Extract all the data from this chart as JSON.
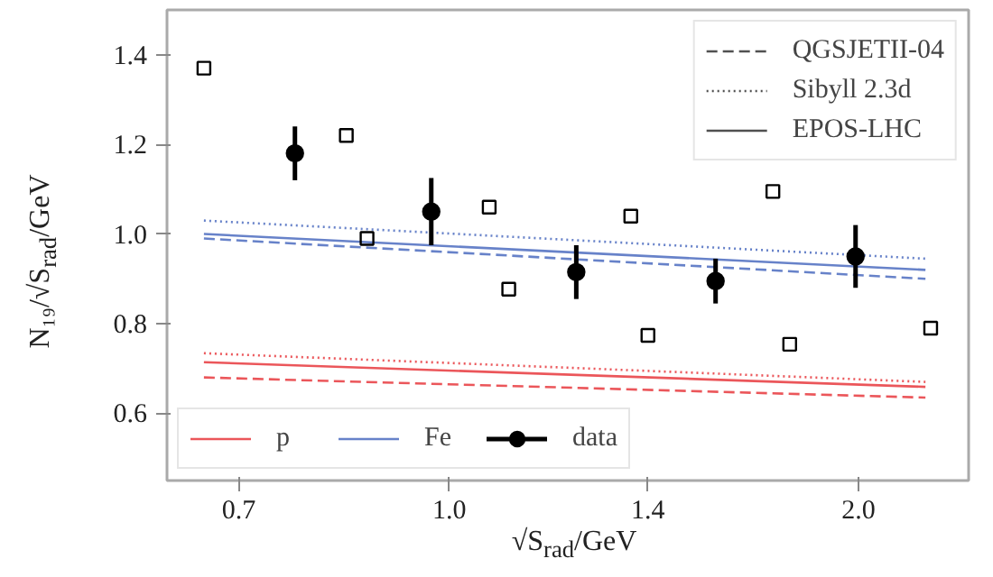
{
  "chart_data": {
    "type": "line",
    "xlabel": "√S$_{rad}$/GeV",
    "ylabel": "N₁₉/√S$_{rad}$/GeV",
    "log": "x",
    "xlim": [
      0.62,
      2.41
    ],
    "ylim": [
      0.45,
      1.5
    ],
    "xticks": [
      0.7,
      {
        "value": 1,
        "label": "1.0"
      },
      1.4,
      {
        "value": 2,
        "label": "2.0"
      }
    ],
    "yticks": [
      0.6,
      0.8,
      {
        "value": 1,
        "label": "1.0"
      },
      1.2,
      1.4
    ],
    "grid": false,
    "legend": "bottom left",
    "series": [
      {
        "x": [
          0.66,
          2.24
        ],
        "values": [
          0.68,
          0.635
        ],
        "color": "#e8383d",
        "line_style": "dashed"
      },
      {
        "x": [
          0.66,
          2.24
        ],
        "values": [
          0.734,
          0.67
        ],
        "color": "#e8383d",
        "line_style": "dotted"
      },
      {
        "name": "p",
        "x": [
          0.66,
          2.24
        ],
        "values": [
          0.714,
          0.659
        ],
        "color": "#e8383d",
        "line_style": "solid"
      },
      {
        "x": [
          0.66,
          2.24
        ],
        "values": [
          0.99,
          0.9
        ],
        "color": "#4c6cc0",
        "line_style": "dashed"
      },
      {
        "x": [
          0.66,
          2.24
        ],
        "values": [
          1.03,
          0.945
        ],
        "color": "#4c6cc0",
        "line_style": "dotted"
      },
      {
        "name": "Fe",
        "x": [
          0.66,
          2.24
        ],
        "values": [
          1.0,
          0.92
        ],
        "color": "#4c6cc0",
        "line_style": "solid"
      },
      {
        "type": "scatter",
        "x": [
          0.66,
          0.84,
          1.07,
          1.36,
          1.73,
          0.87,
          1.106,
          1.4,
          1.78,
          2.26
        ],
        "values": [
          1.37,
          1.22,
          1.06,
          1.04,
          1.095,
          0.99,
          0.877,
          0.774,
          0.754,
          0.79
        ],
        "color": "#000000",
        "marker": "square"
      },
      {
        "type": "scatter",
        "name": "data",
        "x": [
          0.77,
          0.97,
          1.24,
          1.57,
          1.99
        ],
        "values": [
          1.18,
          1.05,
          0.915,
          0.895,
          0.95
        ],
        "errors": [
          0.06,
          0.075,
          0.06,
          0.05,
          0.07
        ],
        "color": "#000000",
        "marker": "circle"
      },
      {
        "name": "QGSJETII-04",
        "values": [
          null,
          null
        ],
        "color": "#333333",
        "line_style": "dashed"
      },
      {
        "name": "Sibyll 2.3d",
        "values": [
          null,
          null
        ],
        "color": "#333333",
        "line_style": "dotted"
      },
      {
        "name": "EPOS-LHC",
        "values": [
          null,
          null
        ],
        "color": "#333333",
        "line_style": "solid"
      }
    ]
  }
}
